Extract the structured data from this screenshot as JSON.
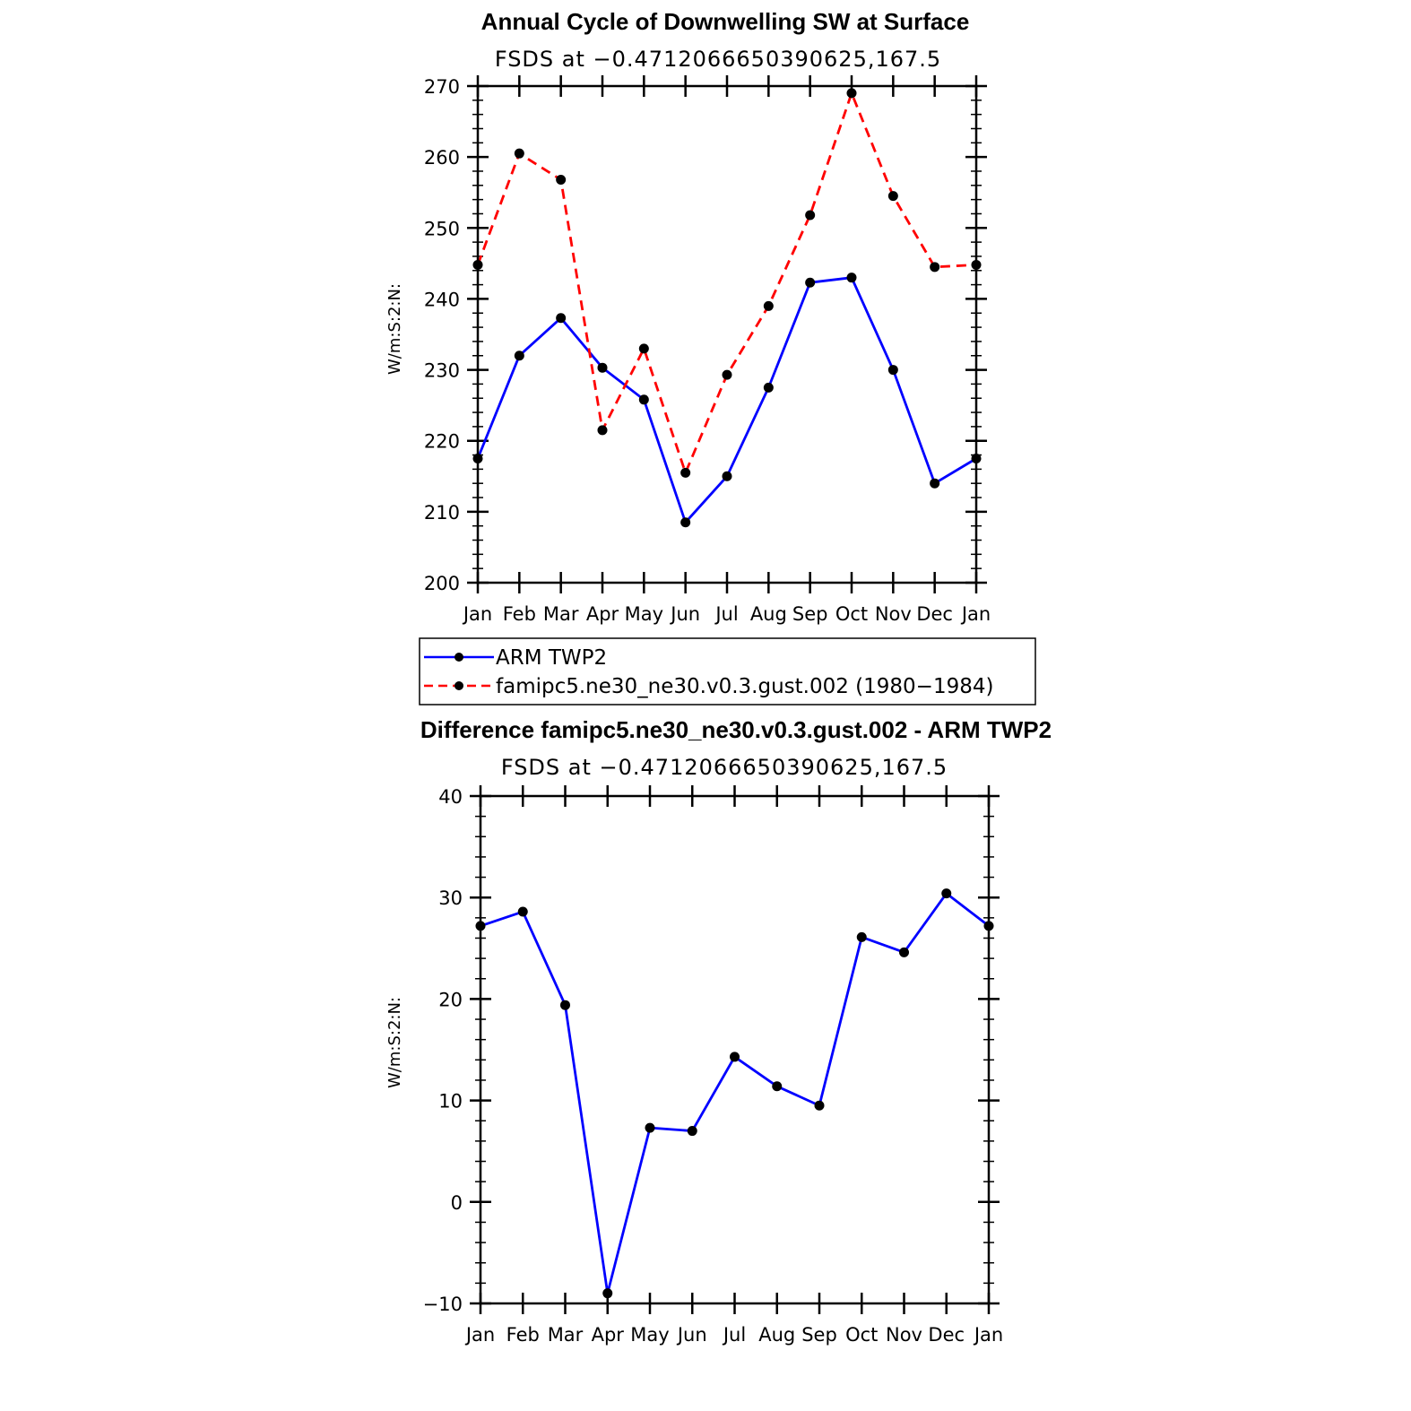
{
  "chart_data": [
    {
      "type": "line",
      "title": "Annual Cycle of Downwelling SW at Surface",
      "subtitle": "FSDS at −0.4712066650390625,167.5",
      "ylabel": "W/m:S:2:N:",
      "ylim": [
        200,
        270
      ],
      "yticks": [
        "200",
        "210",
        "220",
        "230",
        "240",
        "250",
        "260",
        "270"
      ],
      "categories": [
        "Jan",
        "Feb",
        "Mar",
        "Apr",
        "May",
        "Jun",
        "Jul",
        "Aug",
        "Sep",
        "Oct",
        "Nov",
        "Dec",
        "Jan"
      ],
      "series": [
        {
          "name": "ARM TWP2",
          "color": "#0000ff",
          "dash": "solid",
          "values": [
            217.5,
            232.0,
            237.3,
            230.3,
            225.8,
            208.5,
            215.0,
            227.5,
            242.3,
            243.0,
            230.0,
            214.0,
            217.5
          ]
        },
        {
          "name": "famipc5.ne30_ne30.v0.3.gust.002 (1980−1984)",
          "color": "#ff0000",
          "dash": "dashed",
          "values": [
            244.8,
            260.5,
            256.8,
            221.5,
            233.0,
            215.5,
            229.3,
            239.0,
            251.8,
            269.0,
            254.5,
            244.5,
            244.8
          ]
        }
      ],
      "legend": "below"
    },
    {
      "type": "line",
      "title": "Difference famipc5.ne30_ne30.v0.3.gust.002 - ARM TWP2",
      "subtitle": "FSDS at −0.4712066650390625,167.5",
      "ylabel": "W/m:S:2:N:",
      "ylim": [
        -10,
        40
      ],
      "yticks": [
        "−10",
        "0",
        "10",
        "20",
        "30",
        "40"
      ],
      "categories": [
        "Jan",
        "Feb",
        "Mar",
        "Apr",
        "May",
        "Jun",
        "Jul",
        "Aug",
        "Sep",
        "Oct",
        "Nov",
        "Dec",
        "Jan"
      ],
      "series": [
        {
          "color": "#0000ff",
          "dash": "solid",
          "values": [
            27.2,
            28.6,
            19.4,
            -9.0,
            7.3,
            7.0,
            14.3,
            11.4,
            9.5,
            26.1,
            24.6,
            30.4,
            27.2
          ]
        }
      ]
    }
  ]
}
